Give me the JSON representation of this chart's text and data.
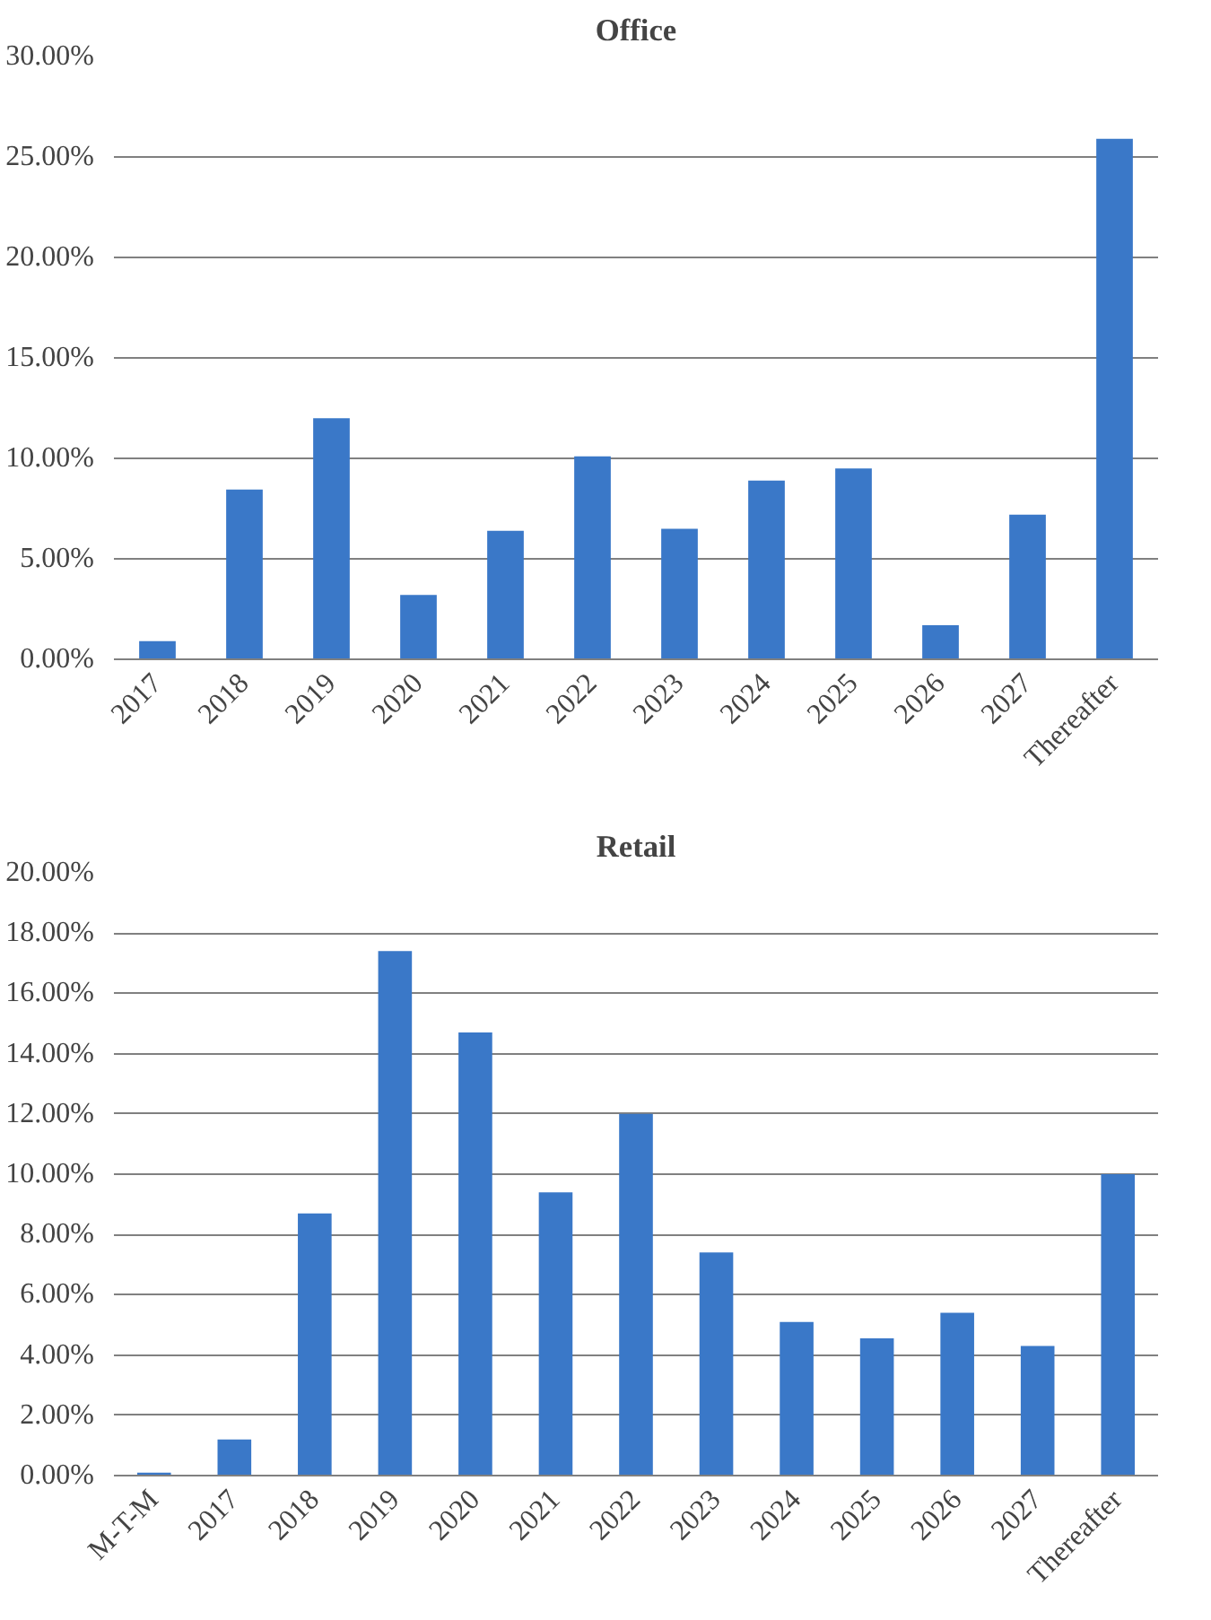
{
  "chart_data": [
    {
      "type": "bar",
      "title": "Office",
      "categories": [
        "2017",
        "2018",
        "2019",
        "2020",
        "2021",
        "2022",
        "2023",
        "2024",
        "2025",
        "2026",
        "2027",
        "Thereafter"
      ],
      "values": [
        0.9,
        8.45,
        12.0,
        3.2,
        6.4,
        10.1,
        6.5,
        8.9,
        9.5,
        1.7,
        7.2,
        25.9
      ],
      "color": "#3a78c8",
      "ylim": [
        0,
        30
      ],
      "yticks": [
        {
          "value": 0,
          "label": "0.00%"
        },
        {
          "value": 5,
          "label": "5.00%"
        },
        {
          "value": 10,
          "label": "10.00%"
        },
        {
          "value": 15,
          "label": "15.00%"
        },
        {
          "value": 20,
          "label": "20.00%"
        },
        {
          "value": 25,
          "label": "25.00%"
        },
        {
          "value": 30,
          "label": "30.00%"
        }
      ],
      "grid": "y",
      "legend": false
    },
    {
      "type": "bar",
      "title": "Retail",
      "categories": [
        "M-T-M",
        "2017",
        "2018",
        "2019",
        "2020",
        "2021",
        "2022",
        "2023",
        "2024",
        "2025",
        "2026",
        "2027",
        "Thereafter"
      ],
      "values": [
        0.1,
        1.2,
        8.7,
        17.4,
        14.7,
        9.4,
        12.0,
        7.4,
        5.1,
        4.55,
        5.4,
        4.3,
        10.0
      ],
      "color": "#3a78c8",
      "ylim": [
        0,
        20
      ],
      "yticks": [
        {
          "value": 0,
          "label": "0.00%"
        },
        {
          "value": 2,
          "label": "2.00%"
        },
        {
          "value": 4,
          "label": "4.00%"
        },
        {
          "value": 6,
          "label": "6.00%"
        },
        {
          "value": 8,
          "label": "8.00%"
        },
        {
          "value": 10,
          "label": "10.00%"
        },
        {
          "value": 12,
          "label": "12.00%"
        },
        {
          "value": 14,
          "label": "14.00%"
        },
        {
          "value": 16,
          "label": "16.00%"
        },
        {
          "value": 18,
          "label": "18.00%"
        },
        {
          "value": 20,
          "label": "20.00%"
        }
      ],
      "grid": "y",
      "legend": false
    }
  ]
}
